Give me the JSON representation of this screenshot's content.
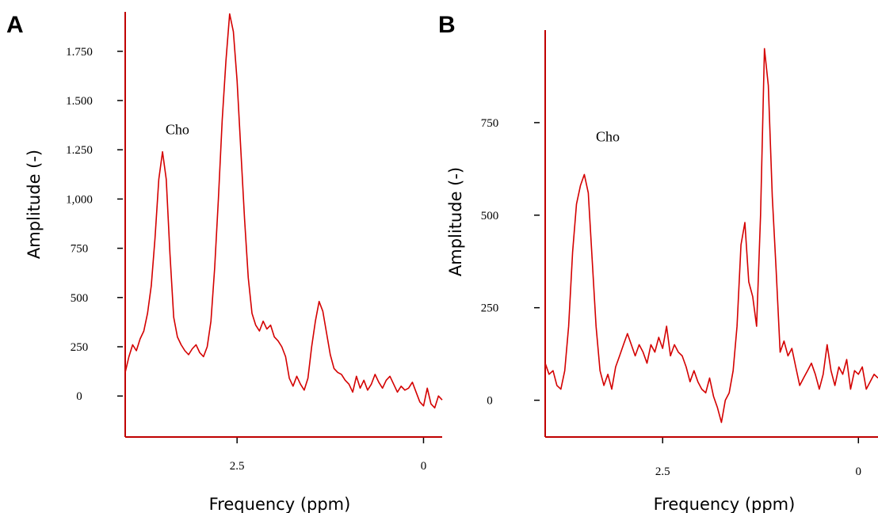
{
  "colors": {
    "line": "#d40000",
    "axis": "#c00000",
    "text": "#000000"
  },
  "chart_data": [
    {
      "type": "line",
      "panel_label": "A",
      "xlabel": "Frequency (ppm)",
      "ylabel": "Amplitude (-)",
      "x_reversed": true,
      "xlim": [
        4.0,
        -0.25
      ],
      "ylim": [
        -200,
        1950
      ],
      "x_ticks": [
        {
          "value": 2.5,
          "label": "2.5"
        },
        {
          "value": 0,
          "label": "0"
        }
      ],
      "y_ticks": [
        {
          "value": 0,
          "label": "0"
        },
        {
          "value": 250,
          "label": "250"
        },
        {
          "value": 500,
          "label": "500"
        },
        {
          "value": 750,
          "label": "750"
        },
        {
          "value": 1000,
          "label": "1,000"
        },
        {
          "value": 1250,
          "label": "1.250"
        },
        {
          "value": 1500,
          "label": "1.500"
        },
        {
          "value": 1750,
          "label": "1.750"
        }
      ],
      "annotations": [
        {
          "text": "Cho",
          "x": 3.3,
          "y": 1330
        }
      ],
      "series": [
        {
          "x": [
            4.0,
            3.95,
            3.9,
            3.85,
            3.8,
            3.75,
            3.7,
            3.65,
            3.6,
            3.55,
            3.5,
            3.45,
            3.4,
            3.35,
            3.3,
            3.25,
            3.2,
            3.15,
            3.1,
            3.05,
            3.0,
            2.95,
            2.9,
            2.85,
            2.8,
            2.75,
            2.7,
            2.65,
            2.6,
            2.55,
            2.5,
            2.45,
            2.4,
            2.35,
            2.3,
            2.25,
            2.2,
            2.15,
            2.1,
            2.05,
            2.0,
            1.95,
            1.9,
            1.85,
            1.8,
            1.75,
            1.7,
            1.65,
            1.6,
            1.55,
            1.5,
            1.45,
            1.4,
            1.35,
            1.3,
            1.25,
            1.2,
            1.15,
            1.1,
            1.05,
            1.0,
            0.95,
            0.9,
            0.85,
            0.8,
            0.75,
            0.7,
            0.65,
            0.6,
            0.55,
            0.5,
            0.45,
            0.4,
            0.35,
            0.3,
            0.25,
            0.2,
            0.15,
            0.1,
            0.05,
            0.0,
            -0.05,
            -0.1,
            -0.15,
            -0.2,
            -0.25
          ],
          "y": [
            120,
            200,
            260,
            230,
            290,
            330,
            420,
            560,
            800,
            1100,
            1240,
            1100,
            720,
            400,
            300,
            260,
            230,
            210,
            240,
            260,
            220,
            200,
            250,
            380,
            650,
            1000,
            1400,
            1700,
            1940,
            1850,
            1600,
            1250,
            900,
            600,
            420,
            360,
            330,
            380,
            340,
            360,
            300,
            280,
            250,
            200,
            90,
            50,
            100,
            60,
            30,
            90,
            250,
            380,
            480,
            430,
            320,
            210,
            140,
            120,
            110,
            80,
            60,
            20,
            100,
            40,
            80,
            30,
            60,
            110,
            70,
            40,
            80,
            100,
            60,
            20,
            50,
            30,
            40,
            70,
            20,
            -30,
            -50,
            40,
            -40,
            -60,
            0,
            -20
          ]
        }
      ]
    },
    {
      "type": "line",
      "panel_label": "B",
      "xlabel": "Frequency (ppm)",
      "ylabel": "Amplitude (-)",
      "x_reversed": true,
      "xlim": [
        4.0,
        -0.25
      ],
      "ylim": [
        -95,
        1000
      ],
      "x_ticks": [
        {
          "value": 2.5,
          "label": "2.5"
        },
        {
          "value": 0,
          "label": "0"
        }
      ],
      "y_ticks": [
        {
          "value": 0,
          "label": "0"
        },
        {
          "value": 250,
          "label": "250"
        },
        {
          "value": 500,
          "label": "500"
        },
        {
          "value": 750,
          "label": "750"
        }
      ],
      "annotations": [
        {
          "text": "Cho",
          "x": 3.2,
          "y": 700
        }
      ],
      "series": [
        {
          "x": [
            4.0,
            3.95,
            3.9,
            3.85,
            3.8,
            3.75,
            3.7,
            3.65,
            3.6,
            3.55,
            3.5,
            3.45,
            3.4,
            3.35,
            3.3,
            3.25,
            3.2,
            3.15,
            3.1,
            3.05,
            3.0,
            2.95,
            2.9,
            2.85,
            2.8,
            2.75,
            2.7,
            2.65,
            2.6,
            2.55,
            2.5,
            2.45,
            2.4,
            2.35,
            2.3,
            2.25,
            2.2,
            2.15,
            2.1,
            2.05,
            2.0,
            1.95,
            1.9,
            1.85,
            1.8,
            1.75,
            1.7,
            1.65,
            1.6,
            1.55,
            1.5,
            1.45,
            1.4,
            1.35,
            1.3,
            1.25,
            1.2,
            1.15,
            1.1,
            1.05,
            1.0,
            0.95,
            0.9,
            0.85,
            0.8,
            0.75,
            0.7,
            0.65,
            0.6,
            0.55,
            0.5,
            0.45,
            0.4,
            0.35,
            0.3,
            0.25,
            0.2,
            0.15,
            0.1,
            0.05,
            0.0,
            -0.05,
            -0.1,
            -0.15,
            -0.2,
            -0.25
          ],
          "y": [
            100,
            70,
            80,
            40,
            30,
            80,
            200,
            400,
            530,
            580,
            610,
            560,
            380,
            200,
            80,
            40,
            70,
            30,
            90,
            120,
            150,
            180,
            150,
            120,
            150,
            130,
            100,
            150,
            130,
            170,
            140,
            200,
            120,
            150,
            130,
            120,
            90,
            50,
            80,
            50,
            30,
            20,
            60,
            10,
            -20,
            -60,
            0,
            20,
            80,
            200,
            420,
            480,
            320,
            280,
            200,
            500,
            950,
            850,
            550,
            350,
            130,
            160,
            120,
            140,
            90,
            40,
            60,
            80,
            100,
            70,
            30,
            70,
            150,
            80,
            40,
            90,
            70,
            110,
            30,
            80,
            70,
            90,
            30,
            50,
            70,
            60
          ]
        }
      ]
    }
  ]
}
